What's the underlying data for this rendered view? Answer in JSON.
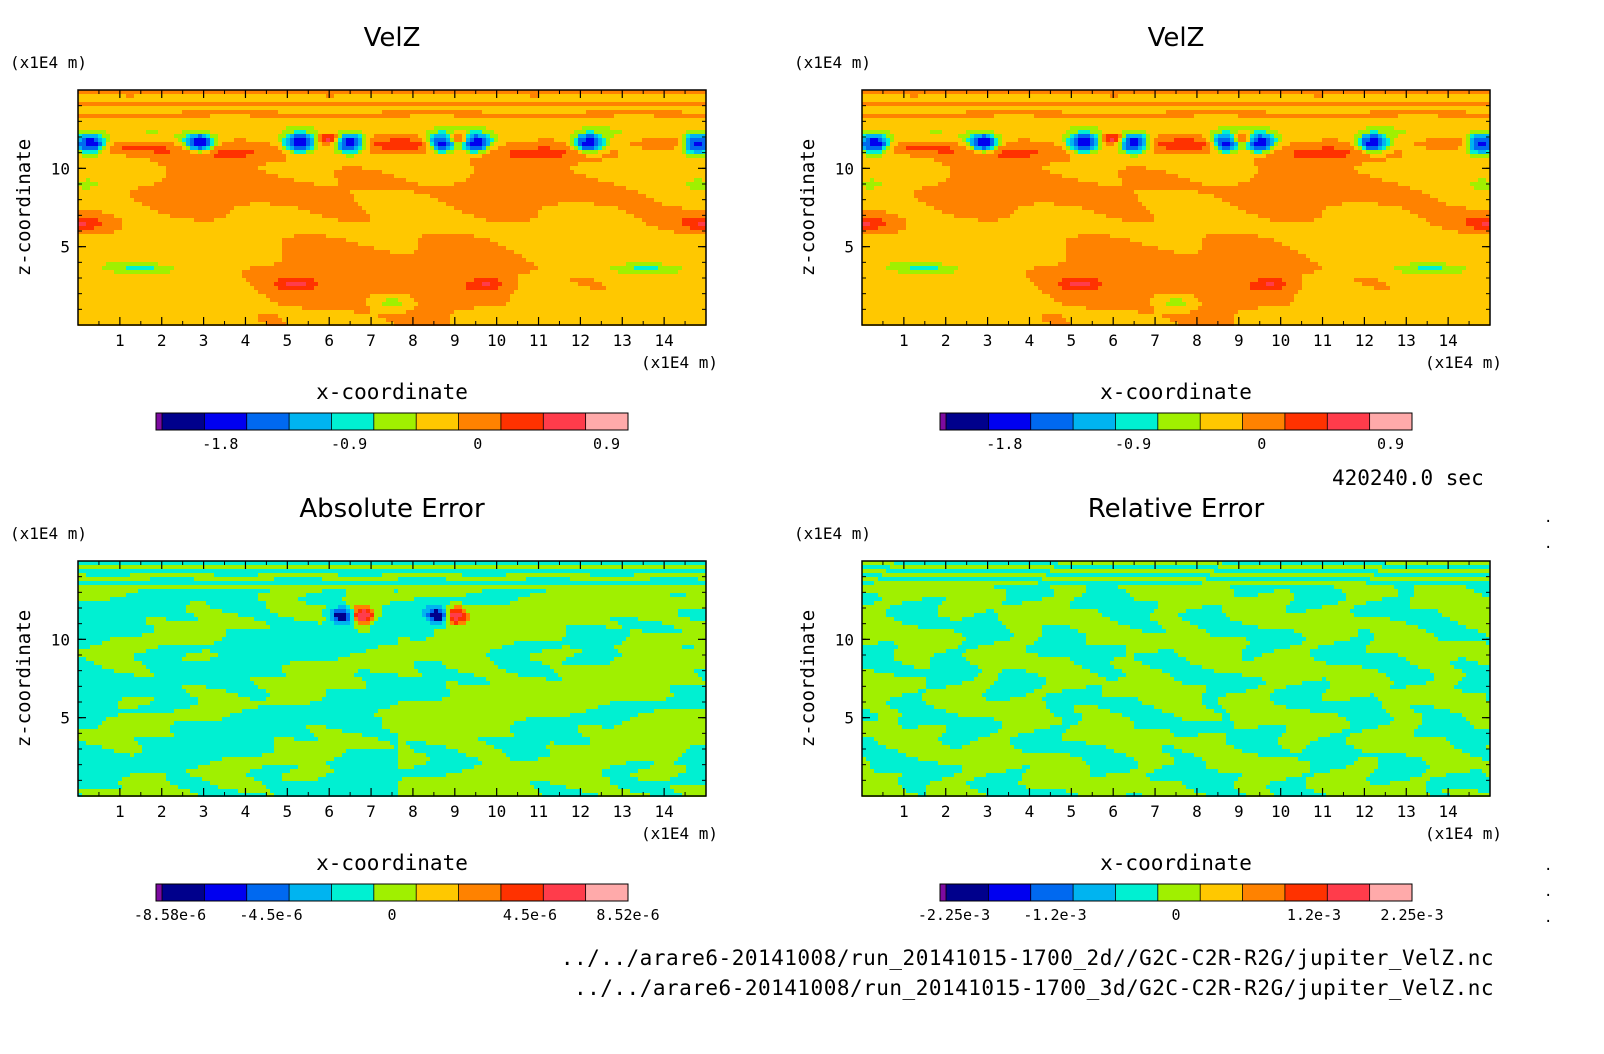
{
  "timestamp": "420240.0 sec",
  "files": [
    "../../arare6-20141008/run_20141015-1700_2d//G2C-C2R-R2G/jupiter_VelZ.nc",
    "../../arare6-20141008/run_20141015-1700_3d/G2C-C2R-R2G/jupiter_VelZ.nc"
  ],
  "colors": {
    "levels": [
      "#7d0aa0",
      "#00008c",
      "#0000f0",
      "#0069f0",
      "#00b4f0",
      "#00f0d2",
      "#a0f000",
      "#ffc800",
      "#ff8200",
      "#ff3200",
      "#ff3c4b",
      "#ffaaaa"
    ]
  },
  "chart_data": [
    {
      "type": "heatmap",
      "title": "VelZ",
      "xlabel": "x-coordinate",
      "ylabel": "z-coordinate",
      "x_unit": "(x1E4 m)",
      "y_unit": "(x1E4 m)",
      "xlim": [
        0,
        15
      ],
      "ylim": [
        0,
        15
      ],
      "x_ticks": [
        "1",
        "2",
        "3",
        "4",
        "5",
        "6",
        "7",
        "8",
        "9",
        "10",
        "11",
        "12",
        "13",
        "14"
      ],
      "y_ticks": [
        "5",
        "10"
      ],
      "colorbar_ticks": [
        "-1.8",
        "-0.9",
        "0",
        "0.9"
      ],
      "colorbar_range": [
        -2.25,
        1.05
      ],
      "field": "velz"
    },
    {
      "type": "heatmap",
      "title": "VelZ",
      "xlabel": "x-coordinate",
      "ylabel": "z-coordinate",
      "x_unit": "(x1E4 m)",
      "y_unit": "(x1E4 m)",
      "xlim": [
        0,
        15
      ],
      "ylim": [
        0,
        15
      ],
      "x_ticks": [
        "1",
        "2",
        "3",
        "4",
        "5",
        "6",
        "7",
        "8",
        "9",
        "10",
        "11",
        "12",
        "13",
        "14"
      ],
      "y_ticks": [
        "5",
        "10"
      ],
      "colorbar_ticks": [
        "-1.8",
        "-0.9",
        "0",
        "0.9"
      ],
      "colorbar_range": [
        -2.25,
        1.05
      ],
      "field": "velz"
    },
    {
      "type": "heatmap",
      "title": "Absolute Error",
      "xlabel": "x-coordinate",
      "ylabel": "z-coordinate",
      "x_unit": "(x1E4 m)",
      "y_unit": "(x1E4 m)",
      "xlim": [
        0,
        15
      ],
      "ylim": [
        0,
        15
      ],
      "x_ticks": [
        "1",
        "2",
        "3",
        "4",
        "5",
        "6",
        "7",
        "8",
        "9",
        "10",
        "11",
        "12",
        "13",
        "14"
      ],
      "y_ticks": [
        "5",
        "10"
      ],
      "colorbar_ticks": [
        "-8.58e-6",
        "-4.5e-6",
        "0",
        "4.5e-6",
        "8.52e-6"
      ],
      "colorbar_range": [
        -8.58e-06,
        8.52e-06
      ],
      "field": "abs"
    },
    {
      "type": "heatmap",
      "title": "Relative Error",
      "xlabel": "x-coordinate",
      "ylabel": "z-coordinate",
      "x_unit": "(x1E4 m)",
      "y_unit": "(x1E4 m)",
      "xlim": [
        0,
        15
      ],
      "ylim": [
        0,
        15
      ],
      "x_ticks": [
        "1",
        "2",
        "3",
        "4",
        "5",
        "6",
        "7",
        "8",
        "9",
        "10",
        "11",
        "12",
        "13",
        "14"
      ],
      "y_ticks": [
        "5",
        "10"
      ],
      "colorbar_ticks": [
        "-2.25e-3",
        "-1.2e-3",
        "0",
        "1.2e-3",
        "2.25e-3"
      ],
      "colorbar_range": [
        -0.00225,
        0.00225
      ],
      "field": "rel"
    }
  ]
}
